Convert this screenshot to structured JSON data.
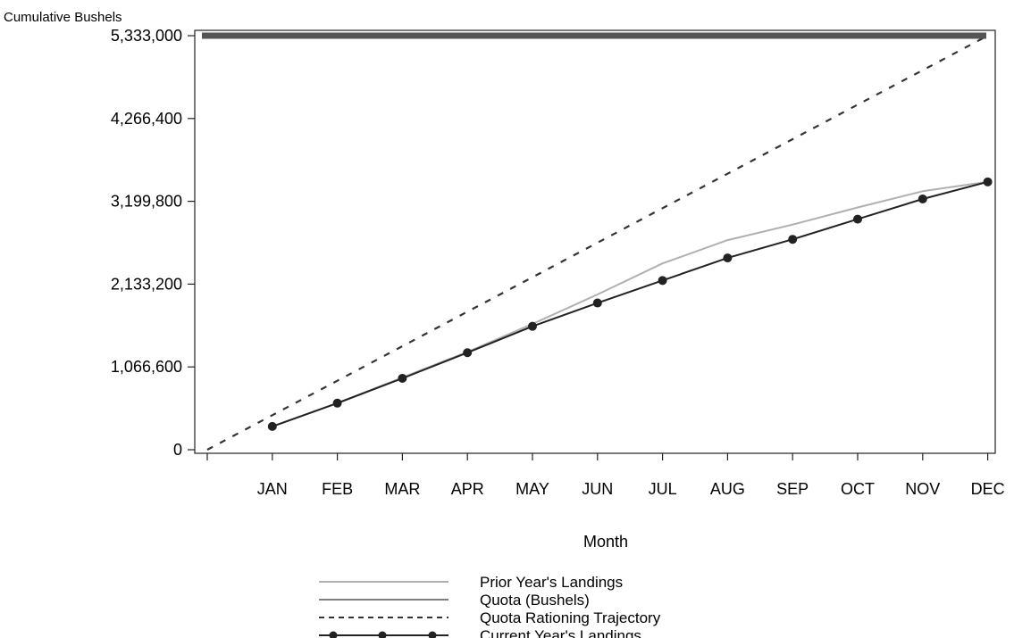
{
  "chart_data": {
    "type": "line",
    "ylabel": "Cumulative Bushels",
    "xlabel": "Month",
    "categories": [
      "",
      "JAN",
      "FEB",
      "MAR",
      "APR",
      "MAY",
      "JUN",
      "JUL",
      "AUG",
      "SEP",
      "OCT",
      "NOV",
      "DEC"
    ],
    "y_ticks": [
      0,
      1066600,
      2133200,
      3199800,
      4266400,
      5333000
    ],
    "y_tick_labels": [
      "0",
      "1,066,600",
      "2,133,200",
      "3,199,800",
      "4,266,400",
      "5,333,000"
    ],
    "ylim": [
      0,
      5333000
    ],
    "grid": false,
    "legend_position": "bottom-center",
    "series": [
      {
        "name": "Prior Year's Landings",
        "style": "light-gray-line",
        "color": "#b0b0b0",
        "x": [
          "JAN",
          "FEB",
          "MAR",
          "APR",
          "MAY",
          "JUN",
          "JUL",
          "AUG",
          "SEP",
          "OCT",
          "NOV",
          "DEC"
        ],
        "values": [
          300000,
          600000,
          930000,
          1260000,
          1620000,
          2000000,
          2400000,
          2700000,
          2900000,
          3120000,
          3330000,
          3450000
        ]
      },
      {
        "name": "Quota (Bushels)",
        "style": "thick-solid-line",
        "color": "#555555",
        "x": [
          "JAN",
          "DEC"
        ],
        "values": [
          5333000,
          5333000
        ]
      },
      {
        "name": "Quota Rationing Trajectory",
        "style": "dashed-line",
        "color": "#333333",
        "x": [
          "",
          "JAN",
          "FEB",
          "MAR",
          "APR",
          "MAY",
          "JUN",
          "JUL",
          "AUG",
          "SEP",
          "OCT",
          "NOV",
          "DEC"
        ],
        "values": [
          0,
          444417,
          888833,
          1333250,
          1777667,
          2222083,
          2666500,
          3110917,
          3555333,
          3999750,
          4444167,
          4888583,
          5333000
        ]
      },
      {
        "name": "Current Year's Landings",
        "style": "line-with-markers",
        "color": "#222222",
        "x": [
          "JAN",
          "FEB",
          "MAR",
          "APR",
          "MAY",
          "JUN",
          "JUL",
          "AUG",
          "SEP",
          "OCT",
          "NOV",
          "DEC"
        ],
        "values": [
          300000,
          600000,
          920000,
          1250000,
          1590000,
          1890000,
          2180000,
          2470000,
          2710000,
          2970000,
          3230000,
          3450000
        ]
      }
    ]
  }
}
